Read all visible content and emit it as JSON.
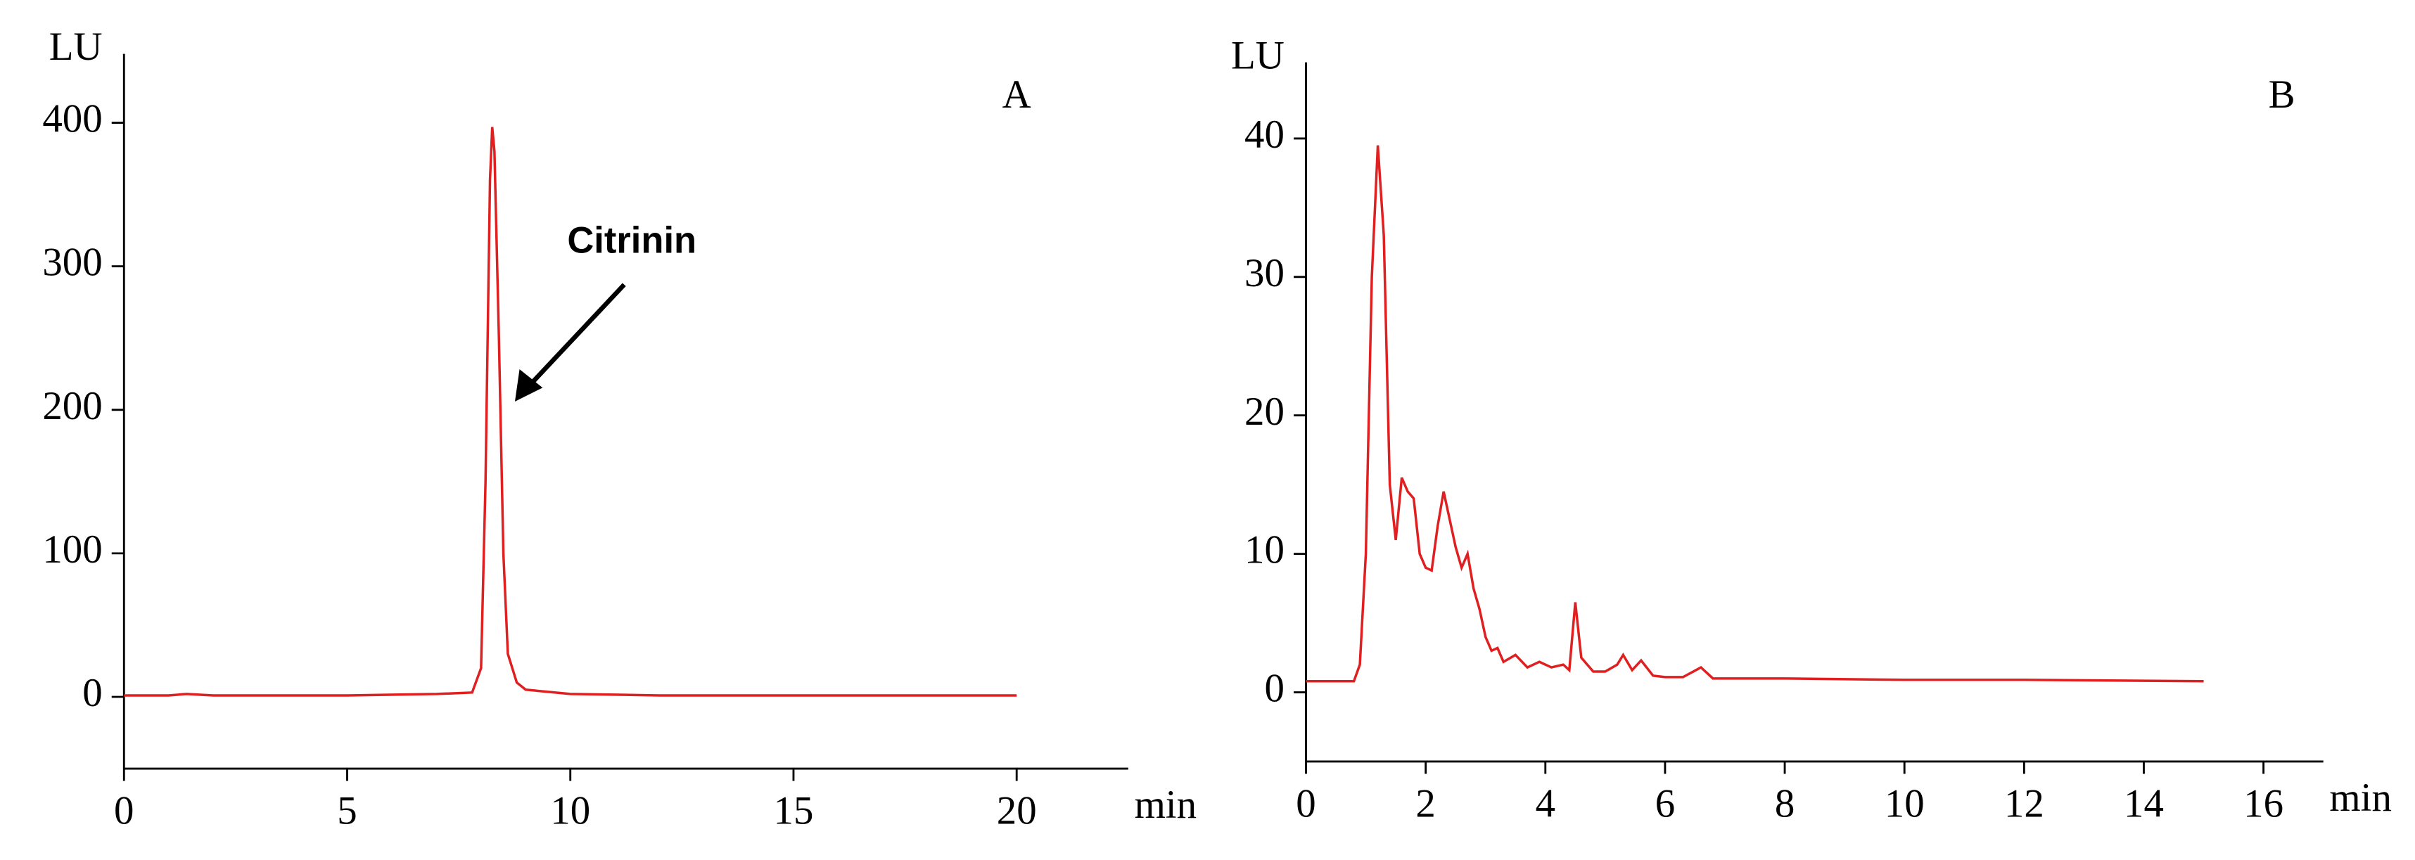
{
  "chart_data": [
    {
      "type": "line",
      "panel_label": "A",
      "annotation": "Citrinin",
      "y_label": "LU",
      "x_label": "min",
      "x": [
        0,
        1,
        1.4,
        2,
        5,
        7,
        7.8,
        8.0,
        8.1,
        8.2,
        8.25,
        8.3,
        8.4,
        8.5,
        8.6,
        8.8,
        9.0,
        10,
        12,
        20
      ],
      "series": [
        {
          "name": "A",
          "color": "#e02020",
          "values": [
            1,
            1,
            2,
            1,
            1,
            2,
            3,
            20,
            150,
            360,
            397,
            380,
            250,
            100,
            30,
            10,
            5,
            2,
            1,
            1
          ]
        }
      ],
      "xlim": [
        0,
        22.5
      ],
      "xticks": [
        0,
        5,
        10,
        15,
        20
      ],
      "ylim": [
        -50,
        448
      ],
      "yticks": [
        0,
        100,
        200,
        300,
        400
      ]
    },
    {
      "type": "line",
      "panel_label": "B",
      "y_label": "LU",
      "x_label": "min",
      "x": [
        0,
        0.8,
        0.9,
        1.0,
        1.1,
        1.2,
        1.3,
        1.4,
        1.5,
        1.6,
        1.7,
        1.8,
        1.9,
        2.0,
        2.1,
        2.2,
        2.3,
        2.4,
        2.5,
        2.6,
        2.7,
        2.8,
        2.9,
        3.0,
        3.1,
        3.2,
        3.3,
        3.5,
        3.7,
        3.9,
        4.1,
        4.3,
        4.4,
        4.5,
        4.6,
        4.8,
        5.0,
        5.2,
        5.3,
        5.45,
        5.6,
        5.8,
        6.0,
        6.3,
        6.6,
        6.8,
        7.5,
        8,
        10,
        12,
        15
      ],
      "series": [
        {
          "name": "B",
          "color": "#e02020",
          "values": [
            0.8,
            0.8,
            2,
            10,
            30,
            39.5,
            33,
            15,
            11,
            15.5,
            14.5,
            14,
            10,
            9,
            8.8,
            12,
            14.5,
            12.5,
            10.5,
            9,
            10,
            7.5,
            6,
            4,
            3,
            3.2,
            2.2,
            2.7,
            1.8,
            2.2,
            1.8,
            2,
            1.6,
            6.5,
            2.5,
            1.5,
            1.5,
            2,
            2.7,
            1.6,
            2.3,
            1.2,
            1.1,
            1.1,
            1.8,
            1,
            1,
            1,
            0.9,
            0.9,
            0.8
          ]
        }
      ],
      "xlim": [
        0,
        17
      ],
      "xticks": [
        0,
        2,
        4,
        6,
        8,
        10,
        12,
        14,
        16
      ],
      "ylim": [
        -5,
        45.5
      ],
      "yticks": [
        0,
        10,
        20,
        30,
        40
      ]
    }
  ]
}
